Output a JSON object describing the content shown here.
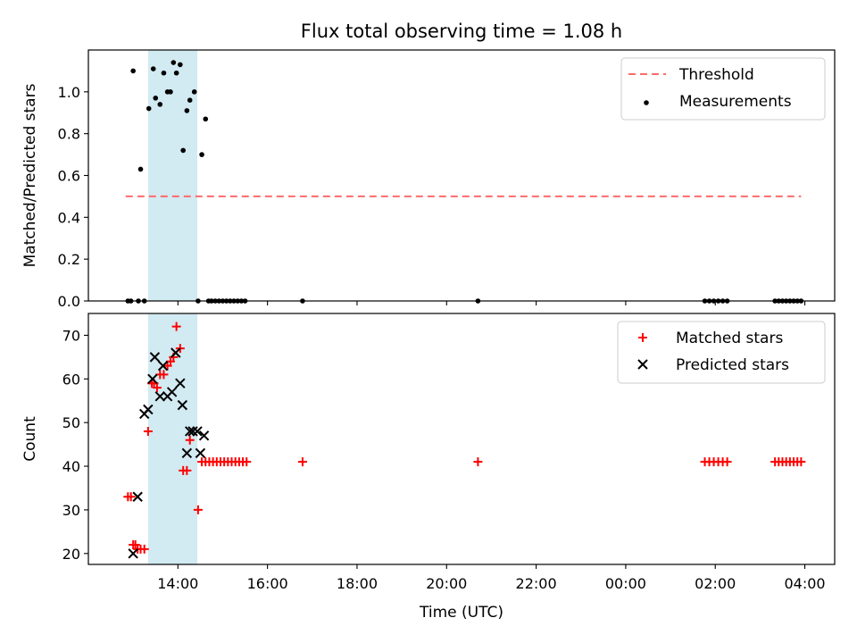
{
  "figure": {
    "title": "Flux total observing time = 1.08 h",
    "xlabel": "Time (UTC)"
  },
  "chart_data": [
    {
      "type": "scatter",
      "ylabel": "Matched/Predicted stars",
      "xlim": [
        "12:00",
        "04:40"
      ],
      "ylim": [
        0,
        1.2
      ],
      "yticks": [
        0.0,
        0.2,
        0.4,
        0.6,
        0.8,
        1.0
      ],
      "ytick_labels": [
        "0.0",
        "0.2",
        "0.4",
        "0.6",
        "0.8",
        "1.0"
      ],
      "xticks": [
        "14:00",
        "16:00",
        "18:00",
        "20:00",
        "22:00",
        "00:00",
        "02:00",
        "04:00"
      ],
      "show_xtick_labels": false,
      "legend_position": "top-right",
      "shaded_span": {
        "x_start": "13:20",
        "x_end": "14:26",
        "color": "#add8e6"
      },
      "threshold": {
        "name": "Threshold",
        "y": 0.5,
        "x_start": "12:50",
        "x_end": "03:55",
        "color": "#ff6b6b"
      },
      "series": [
        {
          "name": "Measurements",
          "marker": "dot",
          "color": "#000000",
          "points": [
            [
              "12:53",
              0
            ],
            [
              "12:57",
              0
            ],
            [
              "13:00",
              1.1
            ],
            [
              "13:07",
              0
            ],
            [
              "13:10",
              0.63
            ],
            [
              "13:15",
              0
            ],
            [
              "13:21",
              0.92
            ],
            [
              "13:27",
              1.11
            ],
            [
              "13:30",
              0.97
            ],
            [
              "13:36",
              0.94
            ],
            [
              "13:41",
              1.09
            ],
            [
              "13:46",
              1.0
            ],
            [
              "13:50",
              1.0
            ],
            [
              "13:54",
              1.14
            ],
            [
              "13:58",
              1.09
            ],
            [
              "14:03",
              1.13
            ],
            [
              "14:07",
              0.72
            ],
            [
              "14:12",
              0.91
            ],
            [
              "14:16",
              0.96
            ],
            [
              "14:22",
              1.0
            ],
            [
              "14:27",
              0
            ],
            [
              "14:32",
              0.7
            ],
            [
              "14:37",
              0.87
            ],
            [
              "14:41",
              0
            ],
            [
              "14:45",
              0
            ],
            [
              "14:50",
              0
            ],
            [
              "14:55",
              0
            ],
            [
              "15:00",
              0
            ],
            [
              "15:05",
              0
            ],
            [
              "15:10",
              0
            ],
            [
              "15:15",
              0
            ],
            [
              "15:20",
              0
            ],
            [
              "15:25",
              0
            ],
            [
              "15:30",
              0
            ],
            [
              "16:47",
              0
            ],
            [
              "20:42",
              0
            ],
            [
              "01:46",
              0
            ],
            [
              "01:52",
              0
            ],
            [
              "01:58",
              0
            ],
            [
              "02:04",
              0
            ],
            [
              "02:10",
              0
            ],
            [
              "02:16",
              0
            ],
            [
              "03:20",
              0
            ],
            [
              "03:25",
              0
            ],
            [
              "03:30",
              0
            ],
            [
              "03:35",
              0
            ],
            [
              "03:40",
              0
            ],
            [
              "03:45",
              0
            ],
            [
              "03:50",
              0
            ],
            [
              "03:55",
              0
            ]
          ]
        }
      ]
    },
    {
      "type": "scatter",
      "ylabel": "Count",
      "xlim": [
        "12:00",
        "04:40"
      ],
      "ylim": [
        17.5,
        75
      ],
      "yticks": [
        20,
        30,
        40,
        50,
        60,
        70
      ],
      "ytick_labels": [
        "20",
        "30",
        "40",
        "50",
        "60",
        "70"
      ],
      "xticks": [
        "14:00",
        "16:00",
        "18:00",
        "20:00",
        "22:00",
        "00:00",
        "02:00",
        "04:00"
      ],
      "show_xtick_labels": true,
      "legend_position": "top-right",
      "shaded_span": {
        "x_start": "13:20",
        "x_end": "14:26",
        "color": "#add8e6"
      },
      "series": [
        {
          "name": "Matched stars",
          "marker": "plus",
          "color": "#ff0000",
          "points": [
            [
              "12:53",
              33
            ],
            [
              "12:57",
              33
            ],
            [
              "13:00",
              22
            ],
            [
              "13:03",
              22
            ],
            [
              "13:06",
              21
            ],
            [
              "13:10",
              21
            ],
            [
              "13:15",
              21
            ],
            [
              "13:20",
              48
            ],
            [
              "13:25",
              59
            ],
            [
              "13:28",
              59
            ],
            [
              "13:32",
              58
            ],
            [
              "13:36",
              61
            ],
            [
              "13:41",
              61
            ],
            [
              "13:46",
              63
            ],
            [
              "13:50",
              64
            ],
            [
              "13:54",
              65
            ],
            [
              "13:58",
              72
            ],
            [
              "14:03",
              67
            ],
            [
              "14:07",
              39
            ],
            [
              "14:12",
              39
            ],
            [
              "14:16",
              46
            ],
            [
              "14:27",
              30
            ],
            [
              "14:32",
              41
            ],
            [
              "14:37",
              41
            ],
            [
              "14:42",
              41
            ],
            [
              "14:47",
              41
            ],
            [
              "14:52",
              41
            ],
            [
              "14:57",
              41
            ],
            [
              "15:02",
              41
            ],
            [
              "15:07",
              41
            ],
            [
              "15:12",
              41
            ],
            [
              "15:17",
              41
            ],
            [
              "15:22",
              41
            ],
            [
              "15:27",
              41
            ],
            [
              "15:32",
              41
            ],
            [
              "16:47",
              41
            ],
            [
              "20:42",
              41
            ],
            [
              "01:46",
              41
            ],
            [
              "01:52",
              41
            ],
            [
              "01:58",
              41
            ],
            [
              "02:04",
              41
            ],
            [
              "02:10",
              41
            ],
            [
              "02:16",
              41
            ],
            [
              "03:20",
              41
            ],
            [
              "03:25",
              41
            ],
            [
              "03:30",
              41
            ],
            [
              "03:35",
              41
            ],
            [
              "03:40",
              41
            ],
            [
              "03:45",
              41
            ],
            [
              "03:50",
              41
            ],
            [
              "03:55",
              41
            ]
          ]
        },
        {
          "name": "Predicted stars",
          "marker": "x",
          "color": "#000000",
          "points": [
            [
              "13:00",
              20
            ],
            [
              "13:06",
              33
            ],
            [
              "13:15",
              52
            ],
            [
              "13:20",
              53
            ],
            [
              "13:26",
              60
            ],
            [
              "13:29",
              65
            ],
            [
              "13:36",
              56
            ],
            [
              "13:40",
              63
            ],
            [
              "13:46",
              56
            ],
            [
              "13:52",
              57
            ],
            [
              "13:57",
              66
            ],
            [
              "14:03",
              59
            ],
            [
              "14:06",
              54
            ],
            [
              "14:12",
              43
            ],
            [
              "14:16",
              48
            ],
            [
              "14:20",
              48
            ],
            [
              "14:26",
              48
            ],
            [
              "14:30",
              43
            ],
            [
              "14:35",
              47
            ]
          ]
        }
      ]
    }
  ]
}
